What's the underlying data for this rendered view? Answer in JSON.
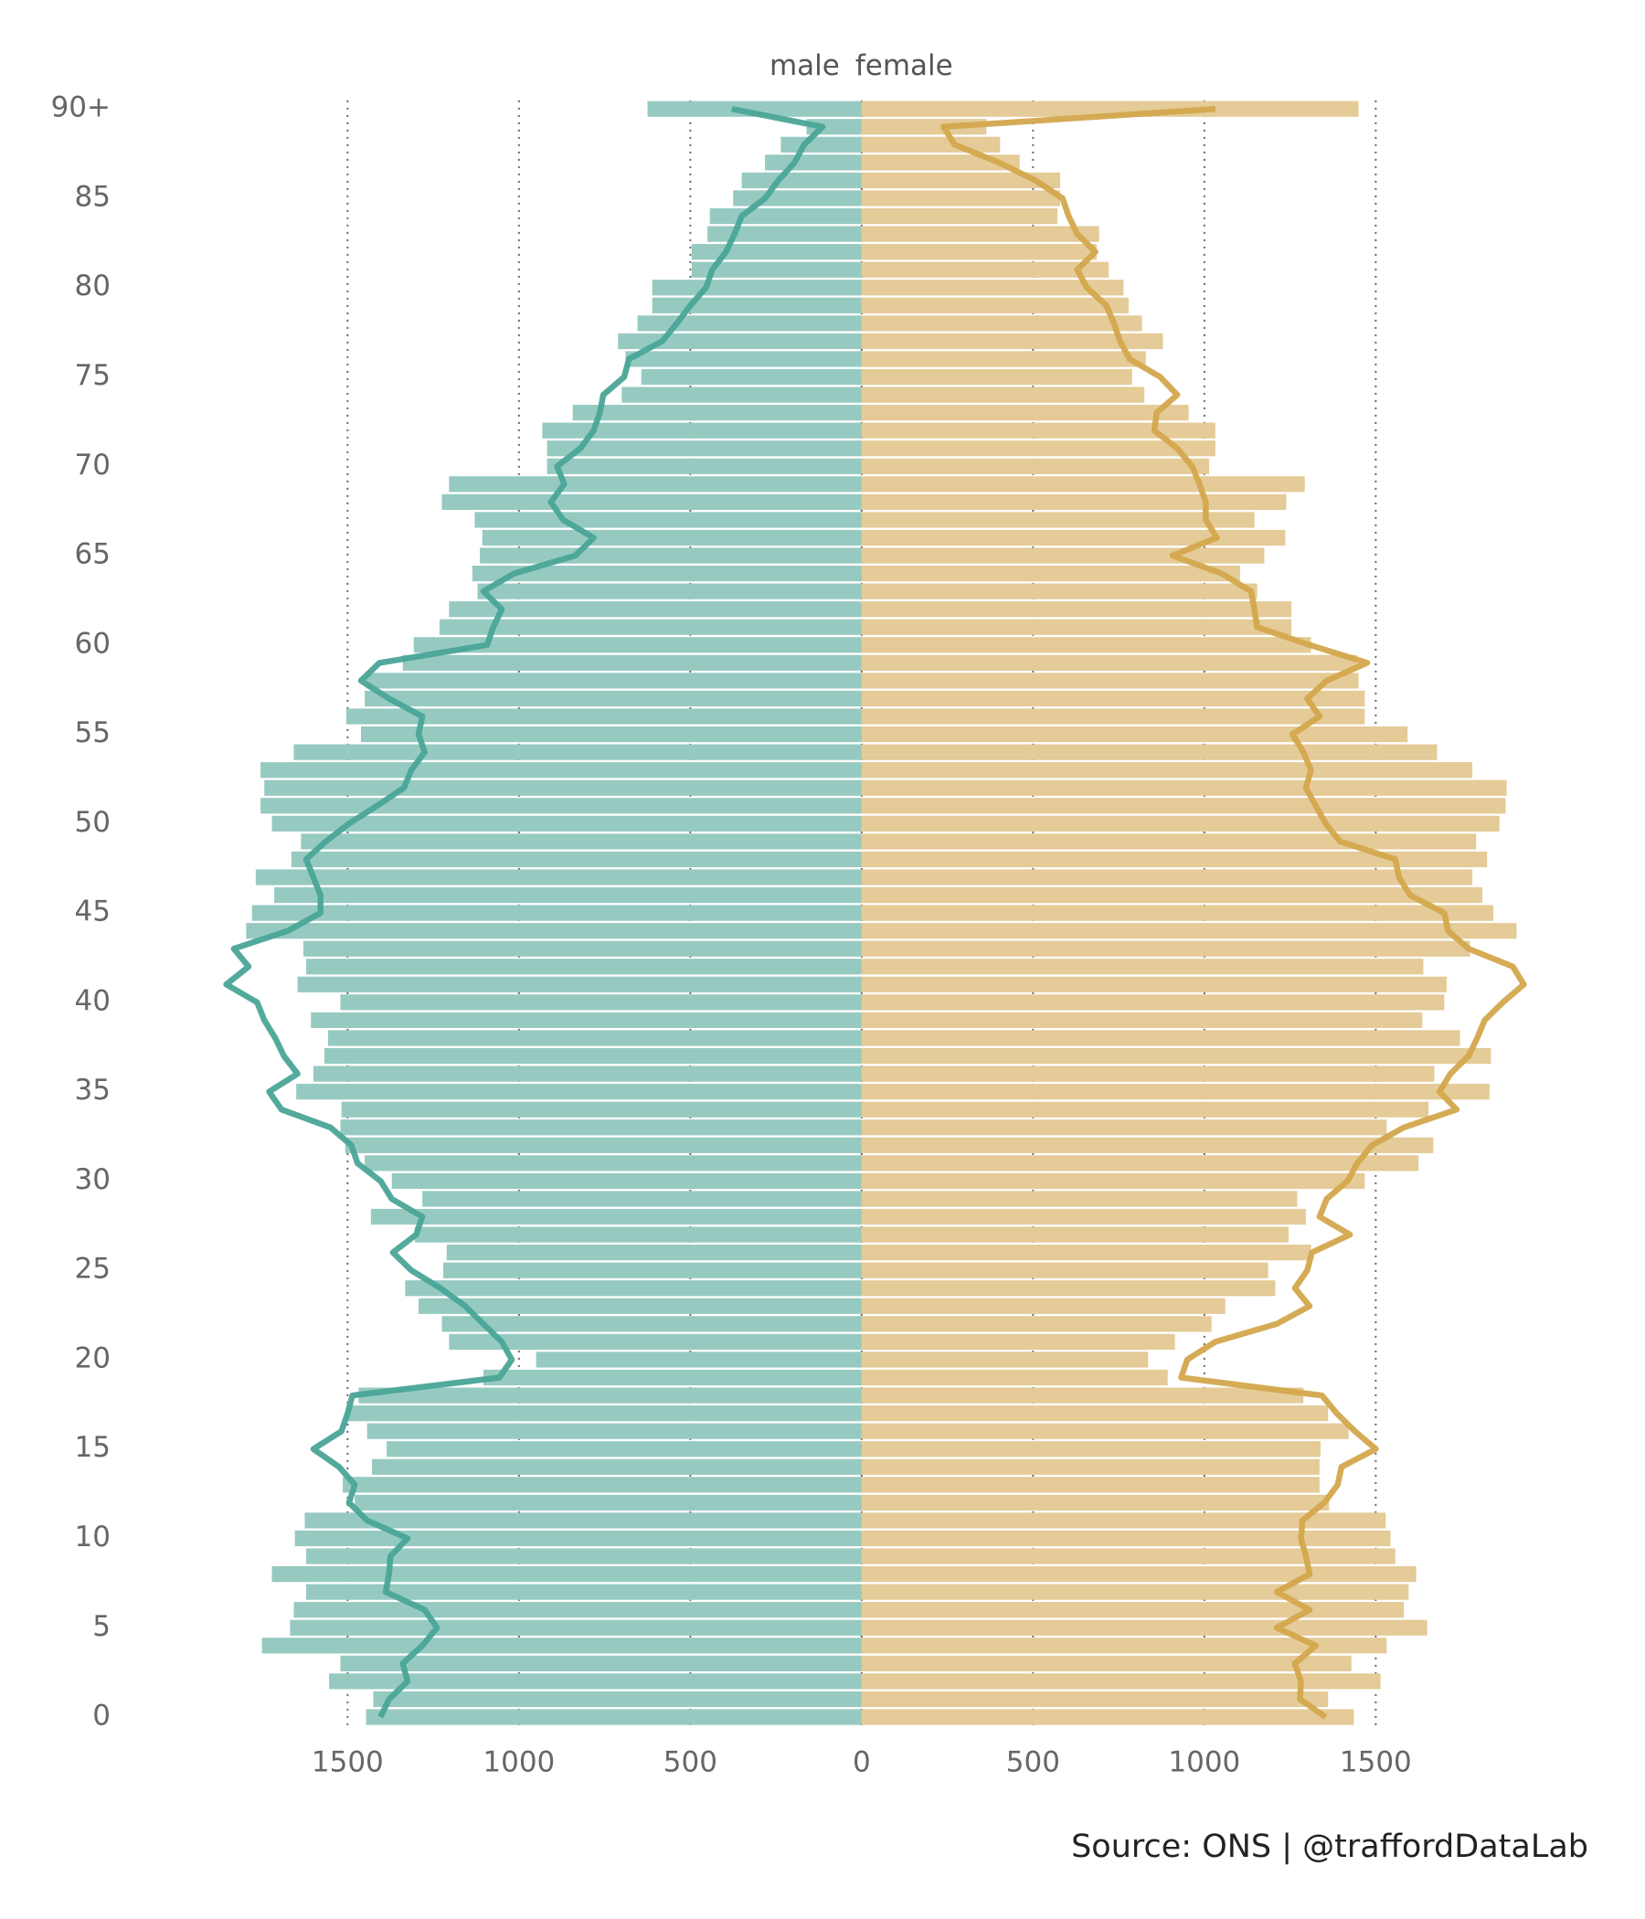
{
  "chart_data": {
    "type": "pyramid",
    "caption": "Source: ONS  |  @traffordDataLab",
    "categories": [
      "0",
      null,
      null,
      null,
      null,
      "5",
      null,
      null,
      null,
      null,
      "10",
      null,
      null,
      null,
      null,
      "15",
      null,
      null,
      null,
      null,
      "20",
      null,
      null,
      null,
      null,
      "25",
      null,
      null,
      null,
      null,
      "30",
      null,
      null,
      null,
      null,
      "35",
      null,
      null,
      null,
      null,
      "40",
      null,
      null,
      null,
      null,
      "45",
      null,
      null,
      null,
      null,
      "50",
      null,
      null,
      null,
      null,
      "55",
      null,
      null,
      null,
      null,
      "60",
      null,
      null,
      null,
      null,
      "65",
      null,
      null,
      null,
      null,
      "70",
      null,
      null,
      null,
      null,
      "75",
      null,
      null,
      null,
      null,
      "80",
      null,
      null,
      null,
      null,
      "85",
      null,
      null,
      null,
      null,
      "90+"
    ],
    "xlim": [
      0,
      1950
    ],
    "xticks": [
      0,
      500,
      1000,
      1500
    ],
    "grid": true,
    "series": [
      {
        "name": "male",
        "color": "#96cac1",
        "line_color": "#4aa597",
        "values": [
          1446,
          1425,
          1554,
          1521,
          1750,
          1668,
          1657,
          1621,
          1721,
          1621,
          1654,
          1625,
          1479,
          1514,
          1429,
          1386,
          1443,
          1504,
          1468,
          1104,
          950,
          1204,
          1225,
          1293,
          1332,
          1221,
          1211,
          1304,
          1432,
          1282,
          1371,
          1450,
          1507,
          1521,
          1518,
          1650,
          1600,
          1568,
          1557,
          1607,
          1521,
          1646,
          1621,
          1629,
          1796,
          1779,
          1714,
          1768,
          1664,
          1636,
          1721,
          1754,
          1743,
          1754,
          1657,
          1461,
          1504,
          1450,
          1446,
          1339,
          1307,
          1232,
          1204,
          1121,
          1136,
          1114,
          1107,
          1129,
          1225,
          1204,
          918,
          918,
          932,
          843,
          700,
          643,
          689,
          711,
          654,
          611,
          611,
          496,
          496,
          450,
          443,
          375,
          350,
          282,
          236,
          161,
          625
        ],
        "line_values": [
          1404,
          1379,
          1325,
          1339,
          1282,
          1239,
          1275,
          1389,
          1379,
          1375,
          1325,
          1443,
          1496,
          1479,
          1525,
          1600,
          1518,
          1500,
          1486,
          1057,
          1021,
          1050,
          1104,
          1157,
          1229,
          1314,
          1368,
          1300,
          1282,
          1371,
          1404,
          1471,
          1489,
          1550,
          1693,
          1729,
          1646,
          1686,
          1711,
          1743,
          1764,
          1854,
          1789,
          1832,
          1675,
          1579,
          1579,
          1600,
          1621,
          1564,
          1496,
          1414,
          1336,
          1314,
          1275,
          1293,
          1282,
          1379,
          1461,
          1407,
          1093,
          1075,
          1050,
          1104,
          1014,
          836,
          782,
          871,
          907,
          868,
          889,
          821,
          782,
          764,
          754,
          693,
          679,
          582,
          539,
          500,
          454,
          436,
          396,
          371,
          350,
          282,
          243,
          196,
          168,
          114,
          379
        ]
      },
      {
        "name": "female",
        "color": "#e4cb97",
        "line_color": "#d3a64c",
        "values": [
          1436,
          1361,
          1514,
          1429,
          1532,
          1650,
          1582,
          1596,
          1618,
          1557,
          1543,
          1529,
          1364,
          1336,
          1336,
          1339,
          1421,
          1361,
          1289,
          893,
          836,
          914,
          1021,
          1061,
          1207,
          1186,
          1311,
          1246,
          1296,
          1271,
          1468,
          1625,
          1668,
          1532,
          1654,
          1832,
          1671,
          1836,
          1746,
          1636,
          1700,
          1707,
          1639,
          1775,
          1911,
          1843,
          1811,
          1782,
          1825,
          1793,
          1861,
          1879,
          1882,
          1782,
          1679,
          1593,
          1468,
          1468,
          1450,
          1446,
          1311,
          1254,
          1254,
          1154,
          1104,
          1175,
          1236,
          1146,
          1239,
          1293,
          1014,
          1032,
          1032,
          954,
          825,
          789,
          829,
          879,
          818,
          779,
          764,
          721,
          686,
          693,
          571,
          579,
          579,
          461,
          404,
          364,
          1450
        ],
        "line_values": [
          1354,
          1279,
          1282,
          1264,
          1325,
          1211,
          1307,
          1211,
          1307,
          1296,
          1282,
          1286,
          1350,
          1389,
          1400,
          1500,
          1439,
          1386,
          1343,
          932,
          950,
          1032,
          1211,
          1307,
          1264,
          1300,
          1314,
          1425,
          1336,
          1357,
          1418,
          1446,
          1489,
          1582,
          1736,
          1686,
          1718,
          1771,
          1796,
          1818,
          1871,
          1932,
          1900,
          1771,
          1711,
          1700,
          1600,
          1568,
          1557,
          1396,
          1354,
          1325,
          1296,
          1311,
          1289,
          1257,
          1336,
          1300,
          1357,
          1475,
          1307,
          1154,
          1146,
          1136,
          1050,
          907,
          1036,
          1004,
          1004,
          986,
          964,
          921,
          854,
          861,
          921,
          871,
          782,
          754,
          736,
          714,
          657,
          629,
          682,
          629,
          604,
          586,
          507,
          400,
          271,
          239,
          1032
        ]
      }
    ]
  }
}
